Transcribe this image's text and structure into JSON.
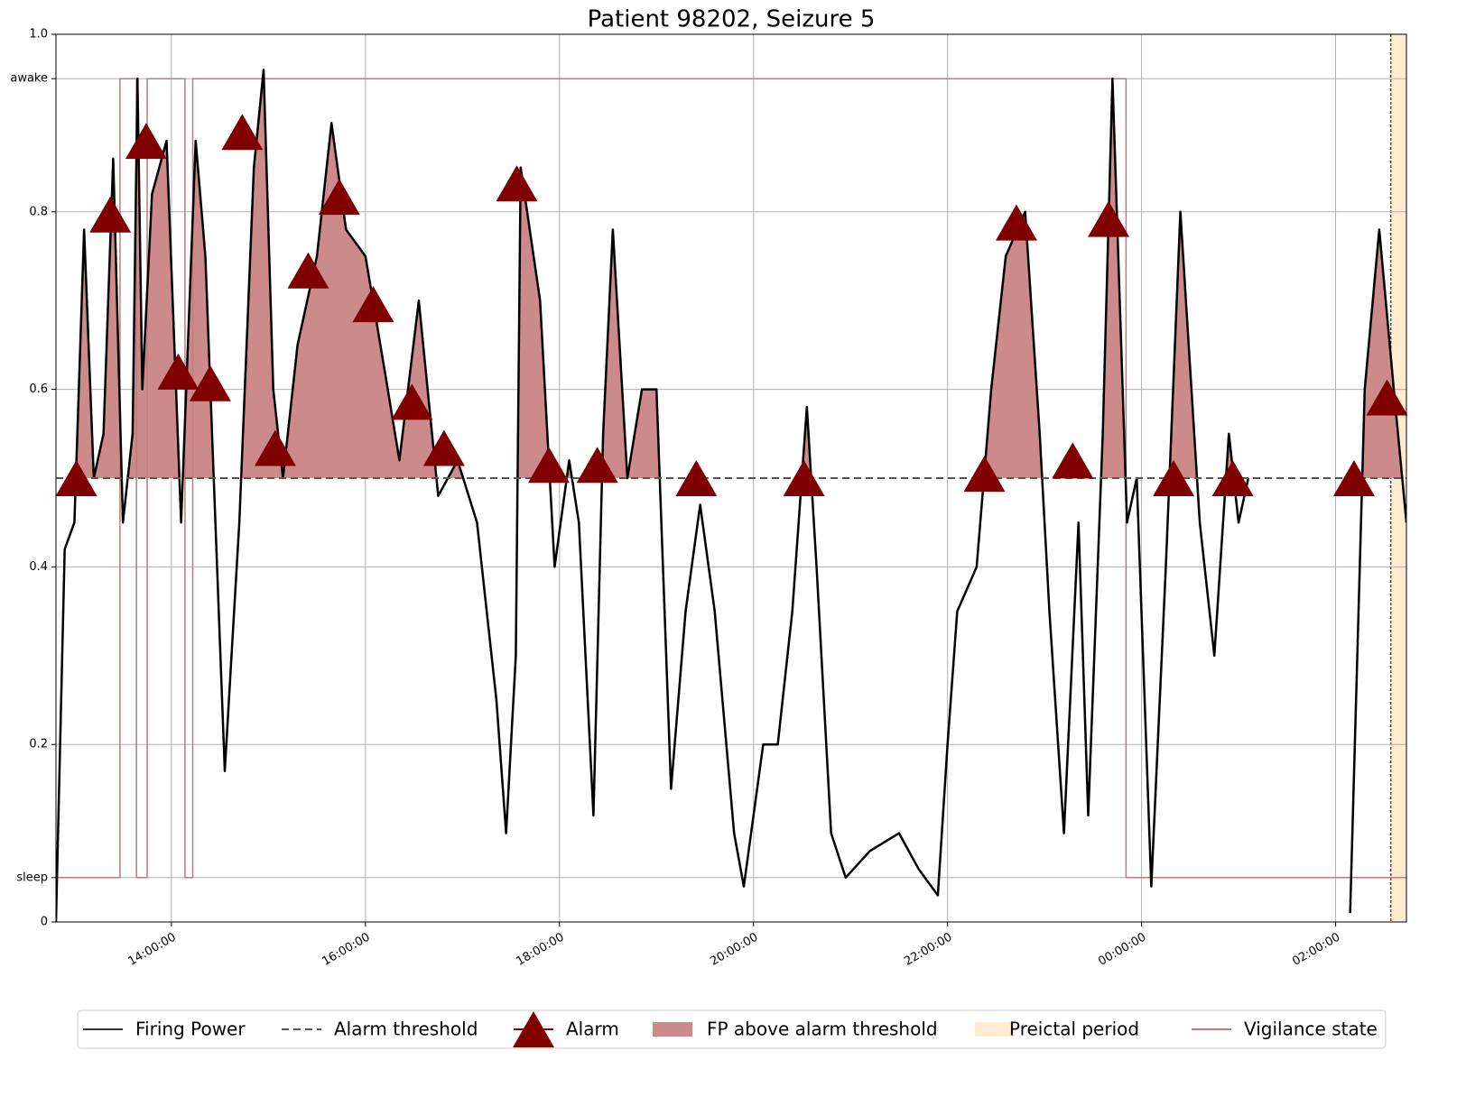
{
  "chart_data": {
    "type": "line",
    "title": "Patient 98202, Seizure 5",
    "xlim": [
      12.81,
      26.73
    ],
    "ylim": [
      0,
      1
    ],
    "xticks": [
      {
        "value": 14,
        "label": "14:00:00"
      },
      {
        "value": 16,
        "label": "16:00:00"
      },
      {
        "value": 18,
        "label": "18:00:00"
      },
      {
        "value": 20,
        "label": "20:00:00"
      },
      {
        "value": 22,
        "label": "22:00:00"
      },
      {
        "value": 24,
        "label": "00:00:00"
      },
      {
        "value": 26,
        "label": "02:00:00"
      }
    ],
    "yticks": [
      0,
      {
        "value": 0.05,
        "label": "sleep"
      },
      0.2,
      0.4,
      0.6,
      0.8,
      {
        "value": 0.95,
        "label": "awake"
      },
      {
        "value": 1,
        "label": "1.0"
      }
    ],
    "grid": true,
    "legend": "bottom",
    "series": [
      {
        "name": "Firing Power",
        "color": "#000000",
        "x": [
          12.81,
          12.9,
          13.0,
          13.1,
          13.2,
          13.3,
          13.4,
          13.5,
          13.6,
          13.65,
          13.7,
          13.8,
          13.95,
          14.1,
          14.25,
          14.35,
          14.55,
          14.7,
          14.85,
          14.95,
          15.05,
          15.15,
          15.3,
          15.5,
          15.65,
          15.8,
          16.0,
          16.2,
          16.35,
          16.55,
          16.75,
          16.95,
          17.15,
          17.35,
          17.45,
          17.55,
          17.6,
          17.8,
          17.95,
          18.1,
          18.2,
          18.35,
          18.45,
          18.55,
          18.7,
          18.85,
          19.0,
          19.15,
          19.3,
          19.45,
          19.6,
          19.8,
          19.9,
          20.1,
          20.25,
          20.4,
          20.55,
          20.65,
          20.8,
          20.95,
          21.2,
          21.5,
          21.7,
          21.9,
          22.0,
          22.1,
          22.3,
          22.45,
          22.6,
          22.8,
          22.95,
          23.05,
          23.2,
          23.35,
          23.45,
          23.6,
          23.7,
          23.85,
          23.95,
          24.1,
          24.25,
          24.4,
          24.6,
          24.75,
          24.9,
          25.0,
          25.1,
          25.6,
          26.15,
          26.3,
          26.45,
          26.6,
          26.73
        ],
        "values": [
          0,
          0.42,
          0.45,
          0.78,
          0.5,
          0.55,
          0.86,
          0.45,
          0.55,
          0.95,
          0.6,
          0.82,
          0.88,
          0.45,
          0.88,
          0.75,
          0.17,
          0.45,
          0.85,
          0.96,
          0.6,
          0.5,
          0.65,
          0.75,
          0.9,
          0.78,
          0.75,
          0.62,
          0.52,
          0.7,
          0.48,
          0.52,
          0.45,
          0.25,
          0.1,
          0.3,
          0.85,
          0.7,
          0.4,
          0.52,
          0.45,
          0.12,
          0.55,
          0.78,
          0.5,
          0.6,
          0.6,
          0.15,
          0.35,
          0.47,
          0.35,
          0.1,
          0.04,
          0.2,
          0.2,
          0.35,
          0.58,
          0.4,
          0.1,
          0.05,
          0.08,
          0.1,
          0.06,
          0.03,
          0.2,
          0.35,
          0.4,
          0.6,
          0.75,
          0.8,
          0.55,
          0.35,
          0.1,
          0.45,
          0.12,
          0.55,
          0.95,
          0.45,
          0.5,
          0.04,
          0.4,
          0.8,
          0.45,
          0.3,
          0.55,
          0.45,
          0.5,
          null,
          0.01,
          0.6,
          0.78,
          0.6,
          0.45
        ]
      }
    ],
    "threshold": {
      "name": "Alarm threshold",
      "value": 0.5,
      "color": "#555555"
    },
    "fill": {
      "name": "FP above alarm threshold",
      "color": "#cd8a8a"
    },
    "alarms": {
      "name": "Alarm",
      "color": "#800000",
      "x": [
        13.02,
        13.37,
        13.74,
        14.07,
        14.4,
        14.73,
        15.07,
        15.41,
        15.73,
        16.08,
        16.48,
        16.81,
        17.56,
        17.89,
        18.39,
        19.41,
        20.52,
        22.38,
        22.71,
        23.29,
        23.66,
        24.33,
        24.94,
        26.19,
        26.53
      ],
      "values": [
        0.5,
        0.797,
        0.88,
        0.62,
        0.607,
        0.89,
        0.534,
        0.734,
        0.817,
        0.696,
        0.586,
        0.534,
        0.832,
        0.515,
        0.515,
        0.5,
        0.5,
        0.505,
        0.788,
        0.52,
        0.792,
        0.5,
        0.5,
        0.5,
        0.591
      ]
    },
    "preictal": {
      "name": "Preictal period",
      "color": "#ffecd0",
      "x": [
        26.57,
        26.73
      ]
    },
    "vigilance": {
      "name": "Vigilance state",
      "color": "#c07a7a",
      "x": [
        12.81,
        13.47,
        13.64,
        13.75,
        14.14,
        14.22,
        23.84,
        26.73
      ],
      "values": [
        0.05,
        0.95,
        0.05,
        0.95,
        0.05,
        0.95,
        0.05,
        0.05
      ]
    }
  }
}
